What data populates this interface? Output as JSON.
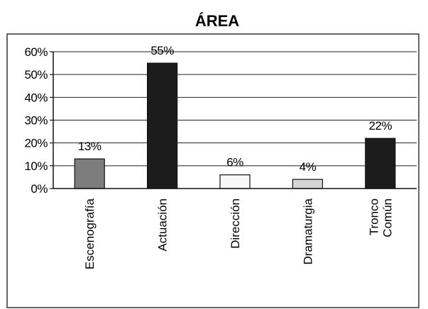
{
  "chart_data": {
    "type": "bar",
    "title": "ÁREA",
    "categories": [
      [
        "Escenografía"
      ],
      [
        "Actuación"
      ],
      [
        "Dirección"
      ],
      [
        "Dramaturgia"
      ],
      [
        "Tronco",
        "Común"
      ]
    ],
    "values": [
      13,
      55,
      6,
      4,
      22
    ],
    "data_labels": [
      "13%",
      "55%",
      "6%",
      "4%",
      "22%"
    ],
    "bar_colors": [
      "#7d7d7d",
      "#1c1c1c",
      "#f7f7f7",
      "#d6d6d6",
      "#1c1c1c"
    ],
    "yticks": [
      "0%",
      "10%",
      "20%",
      "30%",
      "40%",
      "50%",
      "60%"
    ],
    "ylim": [
      0,
      60
    ],
    "grid": true,
    "legend": "none"
  }
}
